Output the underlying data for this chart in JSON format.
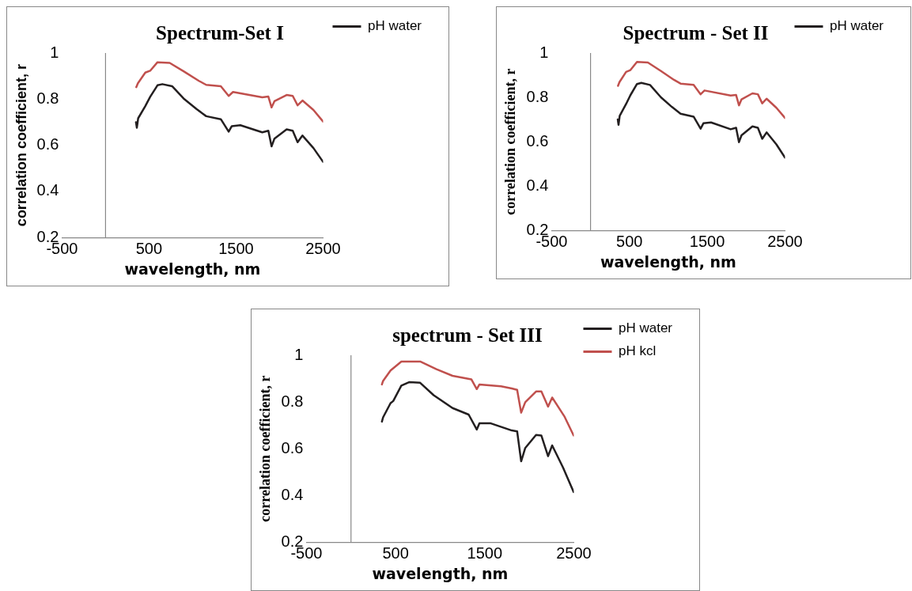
{
  "chart_data": [
    {
      "type": "line",
      "title": "Spectrum-Set I",
      "xlabel": "wavelength, nm",
      "ylabel": "correlation coefficient, r",
      "xlim": [
        -500,
        2500
      ],
      "xticks": [
        -500,
        500,
        1500,
        2500
      ],
      "ylim": [
        0.2,
        1
      ],
      "yticks": [
        0.2,
        0.4,
        0.6,
        0.8,
        1
      ],
      "grid": false,
      "legend": "top right",
      "marker": "none",
      "line_style": "solid",
      "series": [
        {
          "name": "pH water",
          "color": "#231f20",
          "x": [
            350,
            360,
            375,
            457,
            513,
            597,
            653,
            765,
            905,
            1045,
            1157,
            1325,
            1415,
            1451,
            1549,
            1801,
            1871,
            1908,
            1941,
            2081,
            2151,
            2207,
            2263,
            2389,
            2500
          ],
          "values": [
            0.7,
            0.676,
            0.717,
            0.77,
            0.81,
            0.86,
            0.865,
            0.856,
            0.8,
            0.757,
            0.726,
            0.713,
            0.659,
            0.683,
            0.687,
            0.656,
            0.663,
            0.595,
            0.629,
            0.669,
            0.663,
            0.613,
            0.642,
            0.588,
            0.528
          ]
        },
        {
          "color": "#c0504d",
          "x": [
            353,
            372,
            457,
            513,
            597,
            737,
            905,
            1073,
            1157,
            1325,
            1415,
            1465,
            1801,
            1871,
            1908,
            1941,
            2081,
            2151,
            2207,
            2263,
            2389,
            2500
          ],
          "values": [
            0.852,
            0.869,
            0.915,
            0.923,
            0.96,
            0.957,
            0.919,
            0.879,
            0.862,
            0.856,
            0.814,
            0.831,
            0.808,
            0.811,
            0.764,
            0.791,
            0.818,
            0.814,
            0.773,
            0.794,
            0.753,
            0.703
          ]
        }
      ]
    },
    {
      "type": "line",
      "title": "Spectrum - Set II",
      "xlabel": "wavelength, nm",
      "ylabel": "correlation coefficient, r",
      "xlim": [
        -500,
        2500
      ],
      "xticks": [
        -500,
        500,
        1500,
        2500
      ],
      "ylim": [
        0.2,
        1
      ],
      "yticks": [
        0.2,
        0.4,
        0.6,
        0.8,
        1
      ],
      "grid": false,
      "legend": "top right",
      "marker": "none",
      "line_style": "solid",
      "series": [
        {
          "name": "pH water",
          "color": "#231f20",
          "x": [
            350,
            360,
            375,
            457,
            513,
            597,
            653,
            765,
            905,
            1045,
            1157,
            1325,
            1415,
            1451,
            1549,
            1801,
            1871,
            1908,
            1941,
            2081,
            2151,
            2207,
            2263,
            2389,
            2500
          ],
          "values": [
            0.7,
            0.676,
            0.717,
            0.77,
            0.81,
            0.86,
            0.865,
            0.856,
            0.8,
            0.757,
            0.726,
            0.713,
            0.659,
            0.683,
            0.687,
            0.656,
            0.663,
            0.598,
            0.629,
            0.669,
            0.663,
            0.613,
            0.642,
            0.588,
            0.528
          ]
        },
        {
          "color": "#c0504d",
          "x": [
            353,
            372,
            457,
            513,
            597,
            737,
            905,
            1073,
            1157,
            1325,
            1415,
            1465,
            1801,
            1871,
            1908,
            1941,
            2081,
            2151,
            2207,
            2263,
            2389,
            2500
          ],
          "values": [
            0.852,
            0.869,
            0.915,
            0.923,
            0.96,
            0.957,
            0.919,
            0.879,
            0.862,
            0.856,
            0.814,
            0.831,
            0.808,
            0.811,
            0.764,
            0.791,
            0.818,
            0.814,
            0.773,
            0.794,
            0.753,
            0.707
          ]
        }
      ]
    },
    {
      "type": "line",
      "title": "spectrum - Set III",
      "xlabel": "wavelength, nm",
      "ylabel": "correlation coefficient, r",
      "xlim": [
        -500,
        2500
      ],
      "xticks": [
        -500,
        500,
        1500,
        2500
      ],
      "ylim": [
        0.2,
        1
      ],
      "yticks": [
        0.2,
        0.4,
        0.6,
        0.8,
        1
      ],
      "grid": false,
      "legend": "top right",
      "marker": "none",
      "line_style": "solid",
      "series": [
        {
          "name": "pH water",
          "color": "#231f20",
          "x": [
            347,
            360,
            444,
            474,
            565,
            656,
            776,
            927,
            1139,
            1320,
            1411,
            1441,
            1562,
            1804,
            1864,
            1909,
            1955,
            2076,
            2136,
            2211,
            2257,
            2378,
            2498
          ],
          "values": [
            0.716,
            0.734,
            0.795,
            0.804,
            0.87,
            0.885,
            0.882,
            0.829,
            0.774,
            0.746,
            0.682,
            0.709,
            0.709,
            0.678,
            0.674,
            0.546,
            0.603,
            0.659,
            0.656,
            0.568,
            0.614,
            0.52,
            0.414
          ]
        },
        {
          "name": "pH kcl",
          "color": "#c0504d",
          "x": [
            347,
            360,
            444,
            565,
            776,
            958,
            1139,
            1350,
            1411,
            1441,
            1683,
            1804,
            1864,
            1909,
            1955,
            2076,
            2136,
            2211,
            2257,
            2393,
            2498
          ],
          "values": [
            0.875,
            0.89,
            0.935,
            0.973,
            0.973,
            0.94,
            0.912,
            0.897,
            0.855,
            0.875,
            0.867,
            0.858,
            0.852,
            0.754,
            0.799,
            0.845,
            0.845,
            0.78,
            0.819,
            0.739,
            0.656
          ]
        }
      ]
    }
  ]
}
